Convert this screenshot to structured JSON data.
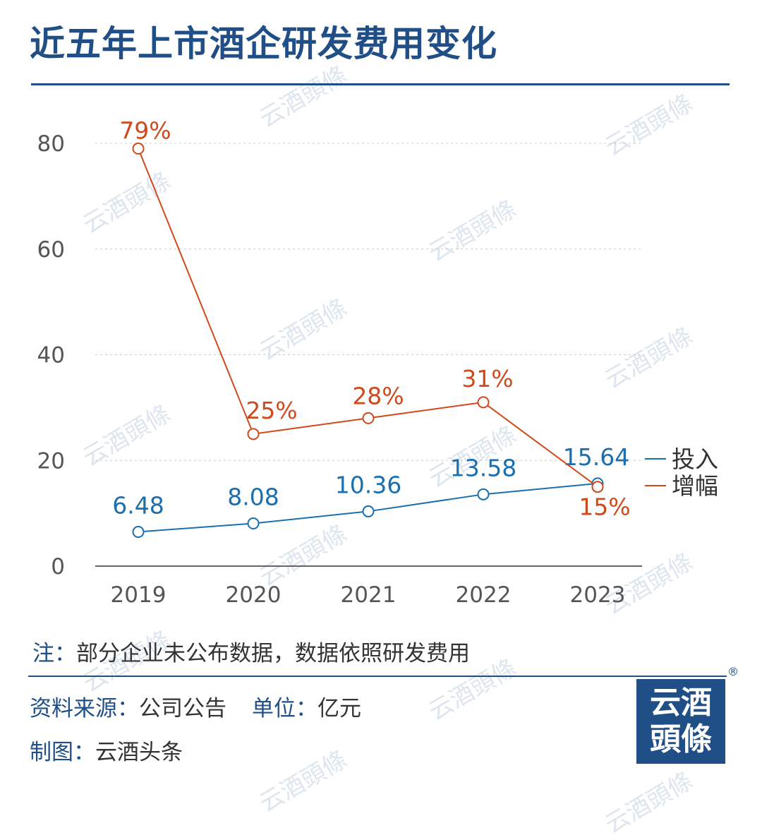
{
  "title": "近五年上市酒企研发费用变化",
  "watermark_text": "云酒頭條",
  "colors": {
    "brand": "#1f4f86",
    "investment": "#1a6fb0",
    "growth": "#d0491d",
    "grid": "#cccccc",
    "axis_text": "#555555"
  },
  "chart_data": {
    "type": "line",
    "categories": [
      "2019",
      "2020",
      "2021",
      "2022",
      "2023"
    ],
    "ylim": [
      0,
      80
    ],
    "yticks": [
      0,
      20,
      40,
      60,
      80
    ],
    "grid": "horizontal-dashed",
    "legend_position": "right",
    "series": [
      {
        "name": "投入",
        "values": [
          6.48,
          8.08,
          10.36,
          13.58,
          15.64
        ],
        "labels": [
          "6.48",
          "8.08",
          "10.36",
          "13.58",
          "15.64"
        ],
        "color": "#1a6fb0"
      },
      {
        "name": "增幅",
        "values": [
          79,
          25,
          28,
          31,
          15
        ],
        "labels": [
          "79%",
          "25%",
          "28%",
          "31%",
          "15%"
        ],
        "color": "#d0491d"
      }
    ]
  },
  "notes": {
    "note_label": "注：",
    "note_text": "部分企业未公布数据，数据依照研发费用",
    "source_label": "资料来源：",
    "source_value": "公司公告",
    "unit_label": "单位：",
    "unit_value": "亿元",
    "maker_label": "制图：",
    "maker_value": "云酒头条"
  },
  "logo": {
    "line1": "云酒",
    "line2": "頭條",
    "registered": "®"
  }
}
